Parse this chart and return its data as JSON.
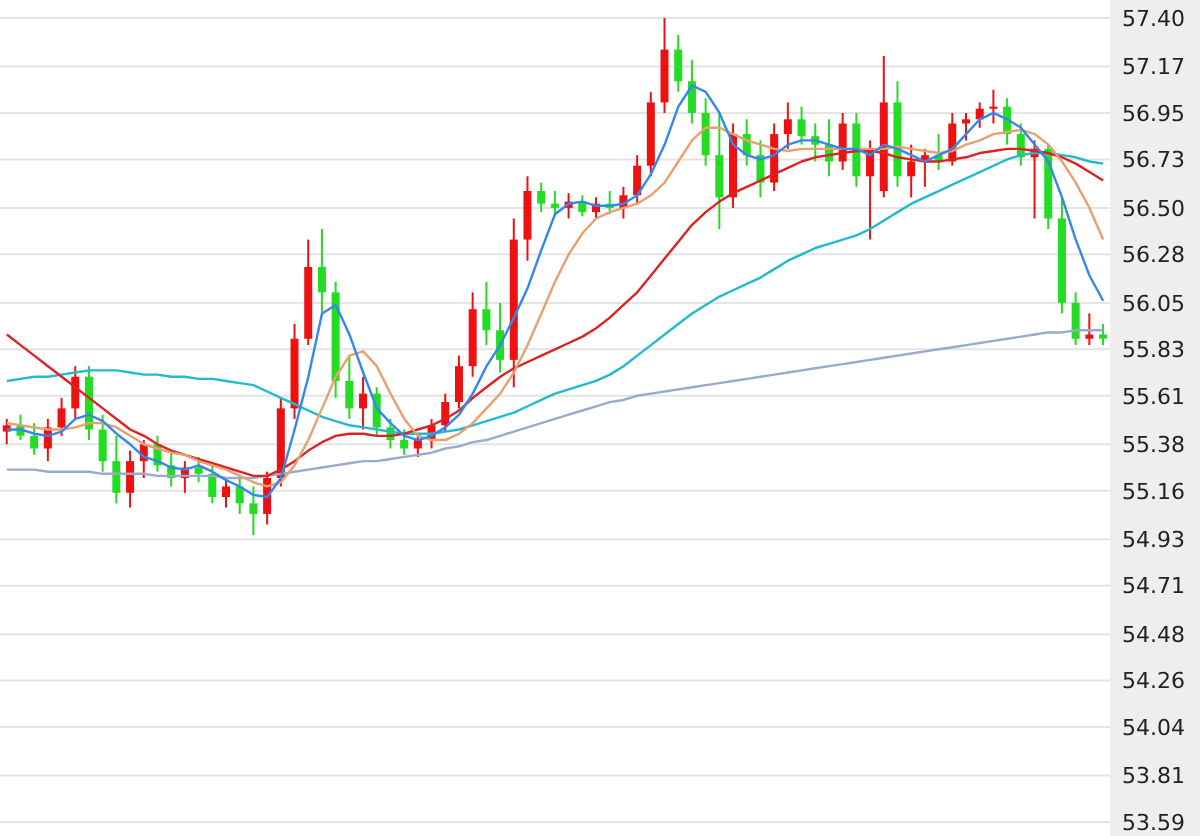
{
  "chart_data": {
    "type": "candlestick",
    "categories": [
      null,
      null,
      null,
      null,
      null,
      null,
      null,
      null,
      null,
      null,
      null,
      null,
      null,
      null,
      null,
      null,
      null,
      null,
      null,
      null,
      null,
      null,
      null,
      null,
      null,
      null,
      null,
      null,
      null,
      null,
      null,
      null,
      null,
      null,
      null,
      null,
      null,
      null,
      null,
      null,
      null,
      null,
      null,
      null,
      null,
      null,
      null,
      null,
      null,
      null,
      null,
      null,
      null,
      null,
      null,
      null,
      null,
      null,
      null,
      null,
      null,
      null,
      null,
      null,
      null,
      null,
      null,
      null,
      null,
      null,
      null,
      null,
      null,
      null,
      null,
      null,
      null,
      null,
      null,
      null,
      null
    ],
    "ohlc": [
      [
        55.44,
        55.5,
        55.38,
        55.47
      ],
      [
        55.47,
        55.52,
        55.4,
        55.42
      ],
      [
        55.42,
        55.48,
        55.33,
        55.36
      ],
      [
        55.36,
        55.5,
        55.3,
        55.46
      ],
      [
        55.46,
        55.6,
        55.42,
        55.55
      ],
      [
        55.55,
        55.75,
        55.5,
        55.7
      ],
      [
        55.7,
        55.75,
        55.4,
        55.45
      ],
      [
        55.45,
        55.52,
        55.25,
        55.3
      ],
      [
        55.3,
        55.42,
        55.1,
        55.15
      ],
      [
        55.15,
        55.35,
        55.08,
        55.3
      ],
      [
        55.3,
        55.4,
        55.22,
        55.38
      ],
      [
        55.38,
        55.42,
        55.25,
        55.28
      ],
      [
        55.28,
        55.34,
        55.18,
        55.22
      ],
      [
        55.22,
        55.3,
        55.15,
        55.27
      ],
      [
        55.27,
        55.32,
        55.2,
        55.24
      ],
      [
        55.24,
        55.28,
        55.1,
        55.13
      ],
      [
        55.13,
        55.22,
        55.08,
        55.18
      ],
      [
        55.18,
        55.22,
        55.05,
        55.1
      ],
      [
        55.1,
        55.18,
        54.95,
        55.05
      ],
      [
        55.05,
        55.25,
        55.0,
        55.22
      ],
      [
        55.22,
        55.6,
        55.18,
        55.55
      ],
      [
        55.55,
        55.95,
        55.5,
        55.88
      ],
      [
        55.88,
        56.35,
        55.85,
        56.22
      ],
      [
        56.22,
        56.4,
        56.0,
        56.1
      ],
      [
        56.1,
        56.15,
        55.6,
        55.68
      ],
      [
        55.68,
        55.8,
        55.5,
        55.55
      ],
      [
        55.55,
        55.7,
        55.45,
        55.62
      ],
      [
        55.62,
        55.65,
        55.42,
        55.46
      ],
      [
        55.46,
        55.5,
        55.36,
        55.4
      ],
      [
        55.4,
        55.45,
        55.33,
        55.36
      ],
      [
        55.36,
        55.42,
        55.32,
        55.4
      ],
      [
        55.4,
        55.5,
        55.36,
        55.47
      ],
      [
        55.47,
        55.62,
        55.44,
        55.58
      ],
      [
        55.58,
        55.8,
        55.55,
        55.75
      ],
      [
        55.75,
        56.1,
        55.7,
        56.02
      ],
      [
        56.02,
        56.15,
        55.85,
        55.92
      ],
      [
        55.92,
        56.05,
        55.72,
        55.78
      ],
      [
        55.78,
        56.45,
        55.65,
        56.35
      ],
      [
        56.35,
        56.65,
        56.25,
        56.58
      ],
      [
        56.58,
        56.62,
        56.48,
        56.52
      ],
      [
        56.52,
        56.58,
        56.46,
        56.5
      ],
      [
        56.5,
        56.57,
        56.45,
        56.53
      ],
      [
        56.53,
        56.56,
        56.46,
        56.48
      ],
      [
        56.48,
        56.55,
        56.45,
        56.52
      ],
      [
        56.52,
        56.58,
        56.47,
        56.5
      ],
      [
        56.5,
        56.6,
        56.45,
        56.56
      ],
      [
        56.56,
        56.75,
        56.52,
        56.7
      ],
      [
        56.7,
        57.05,
        56.65,
        57.0
      ],
      [
        57.0,
        57.4,
        56.95,
        57.25
      ],
      [
        57.25,
        57.32,
        57.05,
        57.1
      ],
      [
        57.1,
        57.2,
        56.9,
        56.95
      ],
      [
        56.95,
        57.02,
        56.7,
        56.75
      ],
      [
        56.75,
        56.95,
        56.4,
        56.55
      ],
      [
        56.55,
        56.9,
        56.5,
        56.85
      ],
      [
        56.85,
        56.92,
        56.7,
        56.75
      ],
      [
        56.75,
        56.82,
        56.55,
        56.62
      ],
      [
        56.62,
        56.9,
        56.58,
        56.85
      ],
      [
        56.85,
        57.0,
        56.78,
        56.92
      ],
      [
        56.92,
        56.98,
        56.8,
        56.84
      ],
      [
        56.84,
        56.9,
        56.72,
        56.8
      ],
      [
        56.8,
        56.92,
        56.65,
        56.72
      ],
      [
        56.72,
        56.95,
        56.68,
        56.9
      ],
      [
        56.9,
        56.95,
        56.6,
        56.65
      ],
      [
        56.65,
        56.82,
        56.35,
        56.78
      ],
      [
        56.58,
        57.22,
        56.55,
        57.0
      ],
      [
        57.0,
        57.1,
        56.6,
        56.65
      ],
      [
        56.65,
        56.8,
        56.55,
        56.72
      ],
      [
        56.72,
        56.78,
        56.6,
        56.75
      ],
      [
        56.75,
        56.85,
        56.68,
        56.72
      ],
      [
        56.72,
        56.95,
        56.7,
        56.9
      ],
      [
        56.9,
        56.95,
        56.82,
        56.92
      ],
      [
        56.92,
        57.0,
        56.88,
        56.97
      ],
      [
        56.97,
        57.06,
        56.9,
        56.98
      ],
      [
        56.98,
        57.02,
        56.8,
        56.85
      ],
      [
        56.85,
        56.9,
        56.7,
        56.74
      ],
      [
        56.74,
        56.82,
        56.45,
        56.78
      ],
      [
        56.78,
        56.8,
        56.4,
        56.45
      ],
      [
        56.45,
        56.55,
        56.0,
        56.05
      ],
      [
        56.05,
        56.1,
        55.85,
        55.88
      ],
      [
        55.88,
        56.0,
        55.85,
        55.9
      ],
      [
        55.9,
        55.95,
        55.85,
        55.88
      ]
    ],
    "colors": [
      "#ee1111",
      "#22dd22",
      "#22dd22",
      "#ee1111",
      "#ee1111",
      "#ee1111",
      "#22dd22",
      "#22dd22",
      "#22dd22",
      "#ee1111",
      "#ee1111",
      "#22dd22",
      "#22dd22",
      "#ee1111",
      "#22dd22",
      "#22dd22",
      "#ee1111",
      "#22dd22",
      "#22dd22",
      "#ee1111",
      "#ee1111",
      "#ee1111",
      "#ee1111",
      "#22dd22",
      "#22dd22",
      "#22dd22",
      "#ee1111",
      "#22dd22",
      "#22dd22",
      "#22dd22",
      "#ee1111",
      "#ee1111",
      "#ee1111",
      "#ee1111",
      "#ee1111",
      "#22dd22",
      "#22dd22",
      "#ee1111",
      "#ee1111",
      "#22dd22",
      "#22dd22",
      "#ee1111",
      "#22dd22",
      "#ee1111",
      "#22dd22",
      "#ee1111",
      "#ee1111",
      "#ee1111",
      "#ee1111",
      "#22dd22",
      "#22dd22",
      "#22dd22",
      "#22dd22",
      "#ee1111",
      "#22dd22",
      "#22dd22",
      "#ee1111",
      "#ee1111",
      "#22dd22",
      "#22dd22",
      "#22dd22",
      "#ee1111",
      "#22dd22",
      "#ee1111",
      "#ee1111",
      "#22dd22",
      "#ee1111",
      "#ee1111",
      "#22dd22",
      "#ee1111",
      "#ee1111",
      "#ee1111",
      "#ee1111",
      "#22dd22",
      "#22dd22",
      "#ee1111",
      "#22dd22",
      "#22dd22",
      "#22dd22",
      "#ee1111",
      "#22dd22"
    ],
    "series": [
      {
        "type": "line",
        "color": "#99aacc",
        "values": [
          55.26,
          55.26,
          55.26,
          55.25,
          55.25,
          55.25,
          55.25,
          55.24,
          55.24,
          55.24,
          55.24,
          55.23,
          55.23,
          55.23,
          55.23,
          55.23,
          55.22,
          55.22,
          55.22,
          55.23,
          55.24,
          55.25,
          55.26,
          55.27,
          55.28,
          55.29,
          55.3,
          55.3,
          55.31,
          55.32,
          55.33,
          55.34,
          55.36,
          55.37,
          55.39,
          55.4,
          55.42,
          55.44,
          55.46,
          55.48,
          55.5,
          55.52,
          55.54,
          55.56,
          55.58,
          55.59,
          55.61,
          55.62,
          55.63,
          55.64,
          55.65,
          55.66,
          55.67,
          55.68,
          55.69,
          55.7,
          55.71,
          55.72,
          55.73,
          55.74,
          55.75,
          55.76,
          55.77,
          55.78,
          55.79,
          55.8,
          55.81,
          55.82,
          55.83,
          55.84,
          55.85,
          55.86,
          55.87,
          55.88,
          55.89,
          55.9,
          55.91,
          55.91,
          55.92,
          55.92,
          55.92
        ]
      },
      {
        "type": "line",
        "color": "#22bbcc",
        "values": [
          55.68,
          55.69,
          55.7,
          55.7,
          55.71,
          55.72,
          55.73,
          55.73,
          55.73,
          55.72,
          55.71,
          55.71,
          55.7,
          55.7,
          55.69,
          55.69,
          55.68,
          55.67,
          55.66,
          55.63,
          55.6,
          55.57,
          55.54,
          55.51,
          55.49,
          55.47,
          55.46,
          55.45,
          55.44,
          55.43,
          55.43,
          55.43,
          55.44,
          55.45,
          55.47,
          55.49,
          55.51,
          55.53,
          55.56,
          55.59,
          55.62,
          55.64,
          55.66,
          55.68,
          55.71,
          55.75,
          55.8,
          55.85,
          55.9,
          55.95,
          56.0,
          56.04,
          56.08,
          56.11,
          56.14,
          56.17,
          56.21,
          56.25,
          56.28,
          56.31,
          56.33,
          56.35,
          56.37,
          56.4,
          56.44,
          56.48,
          56.52,
          56.55,
          56.58,
          56.61,
          56.64,
          56.67,
          56.7,
          56.73,
          56.75,
          56.76,
          56.76,
          56.75,
          56.74,
          56.72,
          56.71
        ]
      },
      {
        "type": "line",
        "color": "#dd2222",
        "values": [
          55.9,
          55.85,
          55.8,
          55.75,
          55.7,
          55.65,
          55.6,
          55.55,
          55.5,
          55.45,
          55.42,
          55.38,
          55.35,
          55.33,
          55.31,
          55.29,
          55.27,
          55.25,
          55.23,
          55.23,
          55.26,
          55.3,
          55.35,
          55.39,
          55.42,
          55.43,
          55.43,
          55.42,
          55.42,
          55.43,
          55.45,
          55.47,
          55.5,
          55.54,
          55.6,
          55.65,
          55.7,
          55.74,
          55.77,
          55.8,
          55.83,
          55.86,
          55.89,
          55.93,
          55.98,
          56.04,
          56.1,
          56.18,
          56.26,
          56.34,
          56.42,
          56.48,
          56.53,
          56.57,
          56.6,
          56.63,
          56.66,
          56.69,
          56.72,
          56.74,
          56.75,
          56.76,
          56.77,
          56.77,
          56.76,
          56.74,
          56.73,
          56.72,
          56.72,
          56.73,
          56.74,
          56.76,
          56.77,
          56.78,
          56.78,
          56.77,
          56.76,
          56.74,
          56.71,
          56.67,
          56.63
        ]
      },
      {
        "type": "line",
        "color": "#e8a070",
        "values": [
          55.48,
          55.47,
          55.46,
          55.45,
          55.45,
          55.46,
          55.48,
          55.48,
          55.46,
          55.42,
          55.38,
          55.36,
          55.34,
          55.33,
          55.3,
          55.28,
          55.26,
          55.23,
          55.2,
          55.18,
          55.2,
          55.28,
          55.4,
          55.55,
          55.7,
          55.8,
          55.82,
          55.75,
          55.62,
          55.5,
          55.42,
          55.4,
          55.4,
          55.43,
          55.48,
          55.55,
          55.62,
          55.72,
          55.85,
          56.0,
          56.15,
          56.28,
          56.38,
          56.45,
          56.48,
          56.5,
          56.52,
          56.56,
          56.62,
          56.72,
          56.82,
          56.88,
          56.88,
          56.85,
          56.82,
          56.8,
          56.78,
          56.77,
          56.78,
          56.78,
          56.78,
          56.78,
          56.78,
          56.78,
          56.78,
          56.79,
          56.78,
          56.77,
          56.76,
          56.77,
          56.8,
          56.82,
          56.85,
          56.86,
          56.87,
          56.85,
          56.8,
          56.72,
          56.62,
          56.5,
          56.35
        ]
      },
      {
        "type": "line",
        "color": "#3388ee",
        "values": [
          55.45,
          55.45,
          55.43,
          55.42,
          55.44,
          55.5,
          55.52,
          55.49,
          55.43,
          55.38,
          55.32,
          55.3,
          55.27,
          55.26,
          55.28,
          55.25,
          55.21,
          55.18,
          55.14,
          55.13,
          55.22,
          55.45,
          55.7,
          56.0,
          56.04,
          55.9,
          55.72,
          55.55,
          55.48,
          55.42,
          55.4,
          55.42,
          55.46,
          55.52,
          55.62,
          55.75,
          55.85,
          55.98,
          56.12,
          56.3,
          56.47,
          56.52,
          56.53,
          56.51,
          56.51,
          56.52,
          56.56,
          56.66,
          56.8,
          56.98,
          57.08,
          57.05,
          56.95,
          56.8,
          56.75,
          56.73,
          56.75,
          56.8,
          56.82,
          56.82,
          56.8,
          56.78,
          56.78,
          56.75,
          56.8,
          56.78,
          56.75,
          56.72,
          56.75,
          56.78,
          56.85,
          56.92,
          56.95,
          56.92,
          56.88,
          56.8,
          56.72,
          56.55,
          56.35,
          56.18,
          56.06
        ]
      }
    ],
    "ylim": [
      53.59,
      57.4
    ],
    "yticks": [
      {
        "value": 57.4,
        "label": "57.40"
      },
      57.17,
      56.95,
      56.73,
      {
        "value": 56.5,
        "label": "56.50"
      },
      56.28,
      56.05,
      55.83,
      55.61,
      55.38,
      55.16,
      54.93,
      54.71,
      54.48,
      54.26,
      54.04,
      53.81,
      53.59
    ],
    "grid": "y"
  }
}
